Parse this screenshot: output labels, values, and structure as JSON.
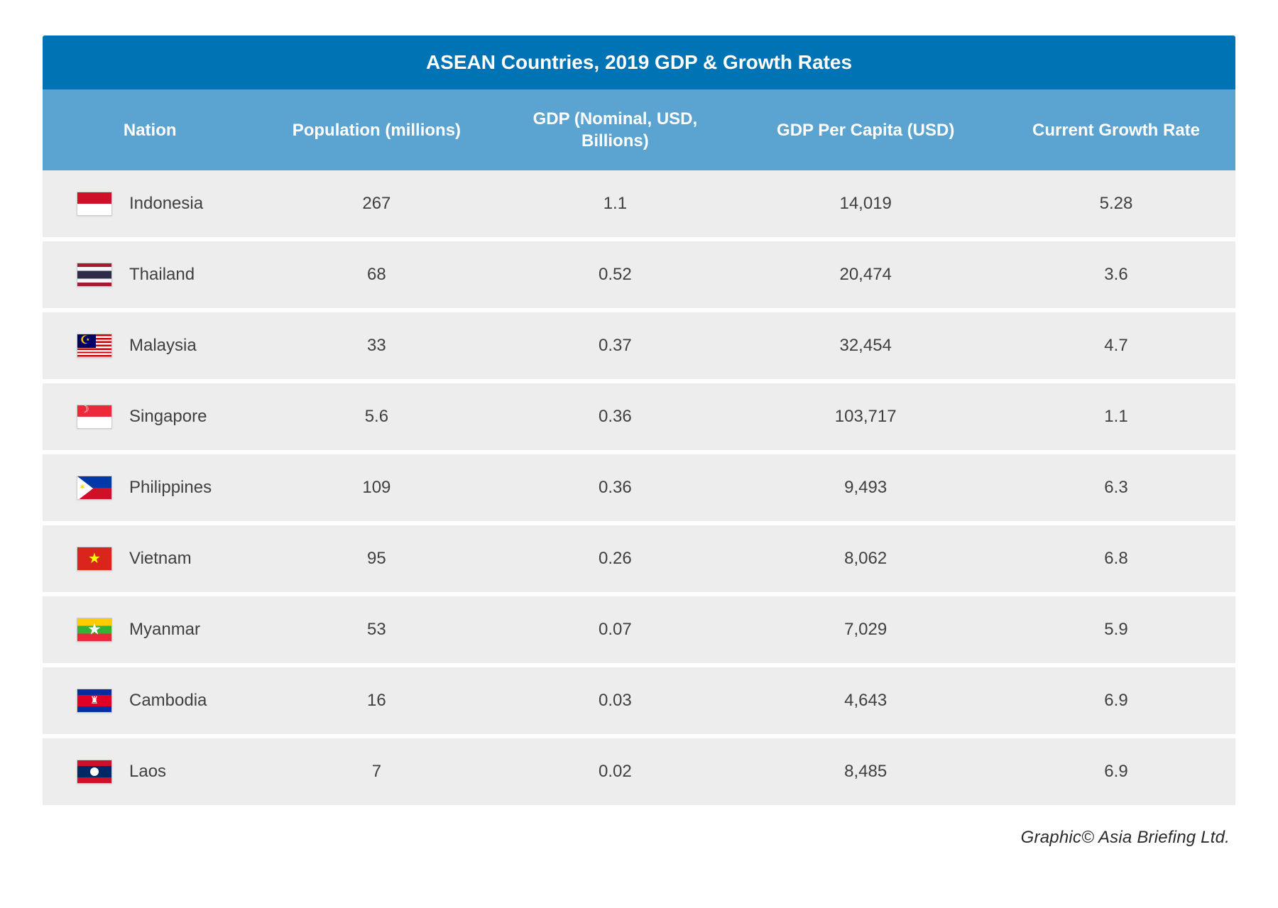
{
  "title": "ASEAN Countries,  2019 GDP & Growth Rates",
  "columns": [
    "Nation",
    "Population (millions)",
    "GDP  (Nominal, USD, Billions)",
    "GDP Per Capita (USD)",
    "Current Growth Rate"
  ],
  "rows": [
    {
      "nation": "Indonesia",
      "flag_class": "flag-indonesia",
      "population": "267",
      "gdp": "1.1",
      "per_capita": "14,019",
      "growth": "5.28"
    },
    {
      "nation": "Thailand",
      "flag_class": "flag-thailand",
      "population": "68",
      "gdp": "0.52",
      "per_capita": "20,474",
      "growth": "3.6"
    },
    {
      "nation": "Malaysia",
      "flag_class": "flag-malaysia",
      "population": "33",
      "gdp": "0.37",
      "per_capita": "32,454",
      "growth": "4.7"
    },
    {
      "nation": "Singapore",
      "flag_class": "flag-singapore",
      "population": "5.6",
      "gdp": "0.36",
      "per_capita": "103,717",
      "growth": "1.1"
    },
    {
      "nation": "Philippines",
      "flag_class": "flag-philippines",
      "population": "109",
      "gdp": "0.36",
      "per_capita": "9,493",
      "growth": "6.3"
    },
    {
      "nation": "Vietnam",
      "flag_class": "flag-vietnam",
      "population": "95",
      "gdp": "0.26",
      "per_capita": "8,062",
      "growth": "6.8"
    },
    {
      "nation": "Myanmar",
      "flag_class": "flag-myanmar",
      "population": "53",
      "gdp": "0.07",
      "per_capita": "7,029",
      "growth": "5.9"
    },
    {
      "nation": "Cambodia",
      "flag_class": "flag-cambodia",
      "population": "16",
      "gdp": "0.03",
      "per_capita": "4,643",
      "growth": "6.9"
    },
    {
      "nation": "Laos",
      "flag_class": "flag-laos",
      "population": "7",
      "gdp": "0.02",
      "per_capita": "8,485",
      "growth": "6.9"
    }
  ],
  "credit": "Graphic© Asia Briefing Ltd.",
  "colors": {
    "title_bg": "#0073b5",
    "header_bg": "#5ba3d0",
    "row_bg": "#ededed",
    "text": "#3f3f3f",
    "white": "#ffffff"
  }
}
